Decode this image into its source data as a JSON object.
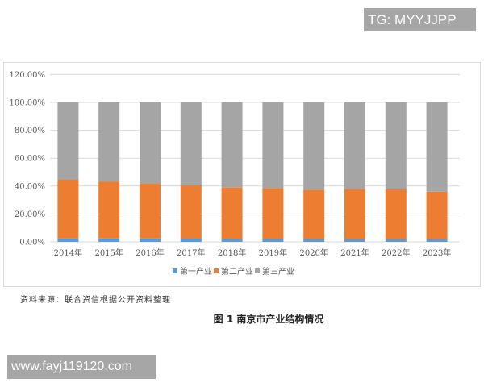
{
  "watermarks": {
    "top": "TG: MYYJJPP",
    "bottom": "www.fayj119120.com"
  },
  "source_note": "资料来源：联合资信根据公开资料整理",
  "caption": "图 1    南京市产业结构情况",
  "colors": {
    "primary": "#5b9bd5",
    "secondary": "#ed7d31",
    "tertiary": "#a5a5a5",
    "grid": "#d9d9d9",
    "axis_text": "#595959"
  },
  "chart_data": {
    "type": "bar",
    "stacked": true,
    "title": "",
    "xlabel": "",
    "ylabel": "",
    "categories": [
      "2014年",
      "2015年",
      "2016年",
      "2017年",
      "2018年",
      "2019年",
      "2020年",
      "2021年",
      "2022年",
      "2023年"
    ],
    "series": [
      {
        "name": "第一产业",
        "values": [
          2.4,
          2.4,
          2.4,
          2.3,
          2.1,
          2.1,
          2.0,
          1.9,
          1.9,
          1.9
        ]
      },
      {
        "name": "第二产业",
        "values": [
          42.1,
          40.9,
          39.2,
          38.2,
          36.8,
          36.3,
          35.4,
          35.9,
          35.8,
          34.0
        ]
      },
      {
        "name": "第三产业",
        "values": [
          55.5,
          56.7,
          58.4,
          59.5,
          61.1,
          61.6,
          62.6,
          62.2,
          62.3,
          64.1
        ]
      }
    ],
    "yticks": [
      "0.00%",
      "20.00%",
      "40.00%",
      "60.00%",
      "80.00%",
      "100.00%",
      "120.00%"
    ],
    "ylim": [
      0,
      120
    ],
    "grid": true,
    "legend_position": "bottom",
    "legend": [
      "第一产业",
      "第二产业",
      "第三产业"
    ]
  }
}
